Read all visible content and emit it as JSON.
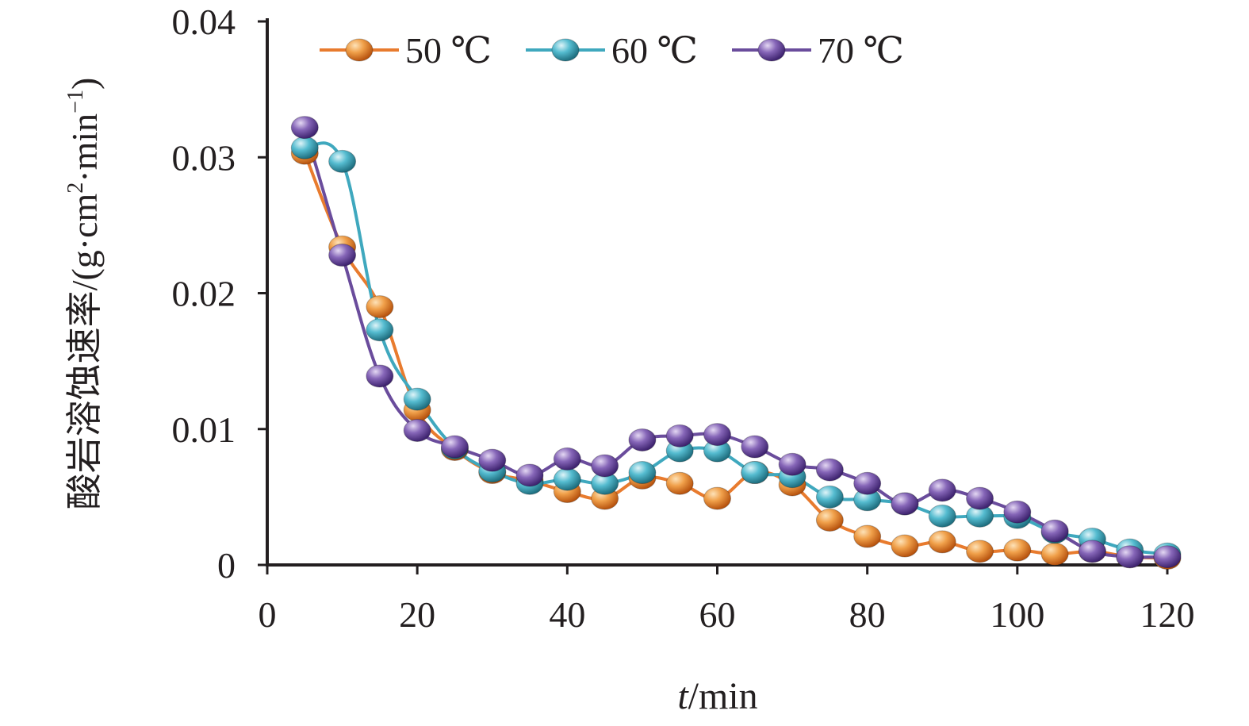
{
  "chart_data": {
    "type": "line",
    "xlabel_italic": "t",
    "xlabel_rest": "/min",
    "ylabel_cn": "酸岩溶蚀速率",
    "ylabel_unit_a": "/(g·cm",
    "ylabel_sup1": "2",
    "ylabel_unit_b": "·min",
    "ylabel_sup2": "−1",
    "ylabel_close": ")",
    "xlim": [
      0,
      120
    ],
    "ylim": [
      0,
      0.04
    ],
    "xticks": [
      0,
      20,
      40,
      60,
      80,
      100,
      120
    ],
    "xtick_labels": [
      "0",
      "20",
      "40",
      "60",
      "80",
      "100",
      "120"
    ],
    "yticks": [
      0,
      0.01,
      0.02,
      0.03,
      0.04
    ],
    "ytick_labels": [
      "0",
      "0.01",
      "0.02",
      "0.03",
      "0.04"
    ],
    "grid": false,
    "legend_position": "top",
    "x": [
      5,
      10,
      15,
      20,
      25,
      30,
      35,
      40,
      45,
      50,
      55,
      60,
      65,
      70,
      75,
      80,
      85,
      90,
      95,
      100,
      105,
      110,
      115,
      120
    ],
    "series": [
      {
        "name": "50 ℃",
        "color": "#e87b2e",
        "values": [
          0.0303,
          0.0234,
          0.019,
          0.0114,
          0.0085,
          0.0068,
          0.0062,
          0.0054,
          0.0049,
          0.0064,
          0.006,
          0.0049,
          0.0068,
          0.0059,
          0.0033,
          0.0021,
          0.0014,
          0.0017,
          0.001,
          0.0011,
          0.0008,
          0.001,
          0.0006,
          0.0005
        ]
      },
      {
        "name": "60 ℃",
        "color": "#3fa8be",
        "values": [
          0.0307,
          0.0297,
          0.0173,
          0.0122,
          0.0086,
          0.0069,
          0.006,
          0.0063,
          0.006,
          0.0068,
          0.0084,
          0.0084,
          0.0068,
          0.0065,
          0.005,
          0.0048,
          0.0045,
          0.0036,
          0.0036,
          0.0035,
          0.0024,
          0.0019,
          0.0011,
          0.0008
        ]
      },
      {
        "name": "70 ℃",
        "color": "#6a4c9c",
        "values": [
          0.0322,
          0.0228,
          0.0139,
          0.0099,
          0.0087,
          0.0077,
          0.0066,
          0.0078,
          0.0073,
          0.0092,
          0.0095,
          0.0096,
          0.0087,
          0.0074,
          0.007,
          0.006,
          0.0045,
          0.0055,
          0.0049,
          0.0039,
          0.0025,
          0.001,
          0.0006,
          0.0006
        ]
      }
    ]
  }
}
